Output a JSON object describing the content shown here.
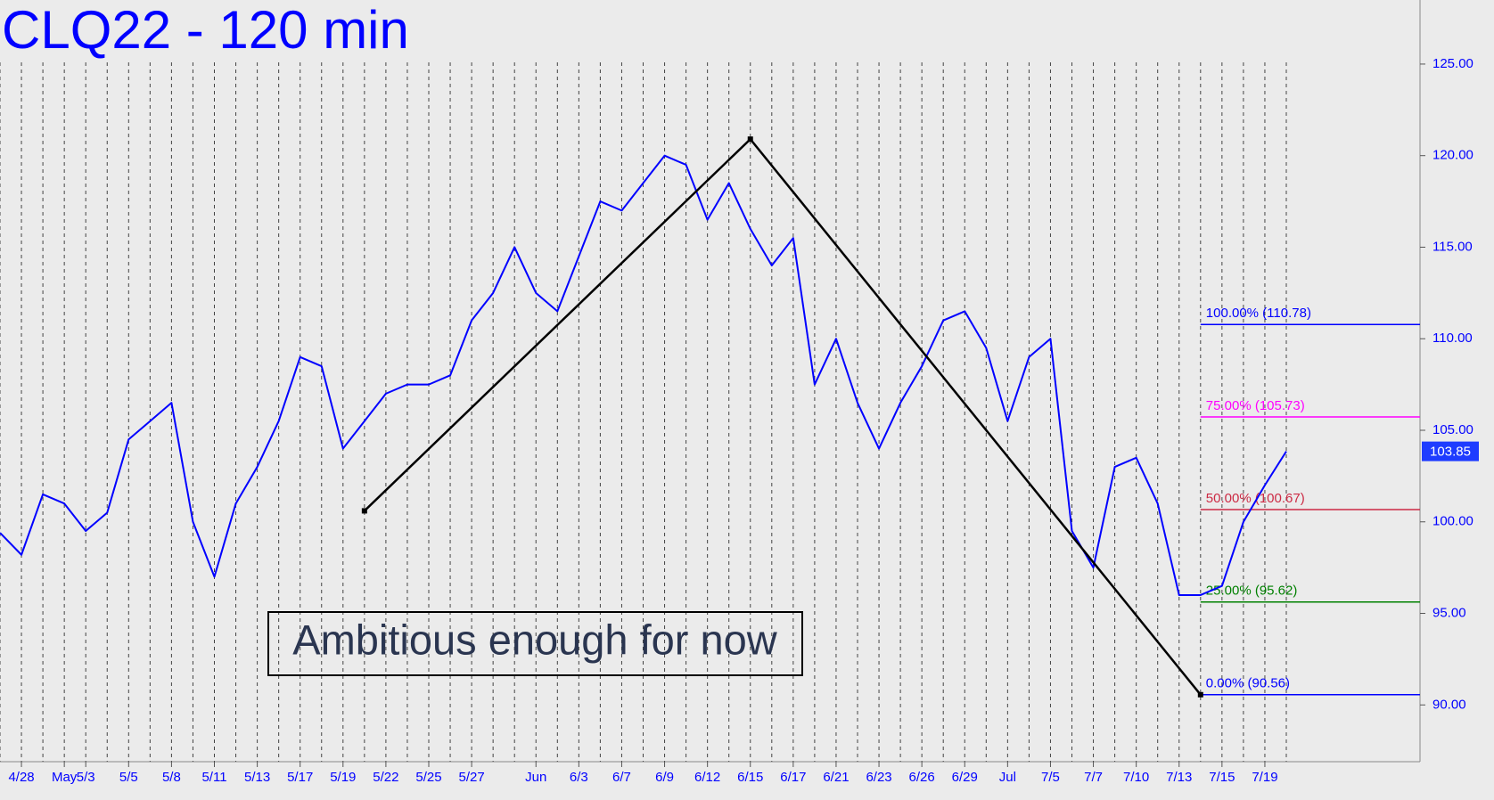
{
  "chart_data": {
    "type": "line",
    "title": "CLQ22 - 120 min",
    "categories": [
      null,
      "4/28",
      null,
      "May",
      "5/3",
      null,
      "5/5",
      null,
      "5/8",
      null,
      "5/11",
      null,
      "5/13",
      null,
      "5/17",
      null,
      "5/19",
      null,
      "5/22",
      null,
      "5/25",
      null,
      "5/27",
      null,
      null,
      "Jun",
      null,
      "6/3",
      null,
      "6/7",
      null,
      "6/9",
      null,
      "6/12",
      null,
      "6/15",
      null,
      "6/17",
      null,
      "6/21",
      null,
      "6/23",
      null,
      "6/26",
      null,
      "6/29",
      null,
      "Jul",
      null,
      "7/5",
      null,
      "7/7",
      null,
      "7/10",
      null,
      "7/13",
      null,
      "7/15",
      null,
      "7/19",
      null
    ],
    "series": [
      {
        "color": "#0000ff",
        "values": [
          99.4,
          98.2,
          101.5,
          101,
          99.5,
          100.5,
          104.5,
          105.5,
          106.5,
          100,
          97,
          101,
          103,
          105.5,
          109,
          108.5,
          104,
          105.5,
          107,
          107.5,
          107.5,
          108,
          111,
          112.5,
          115,
          112.5,
          111.5,
          114.5,
          117.5,
          117,
          118.5,
          120,
          119.5,
          116.5,
          118.5,
          116,
          114,
          115.5,
          107.5,
          110,
          106.5,
          104,
          106.5,
          108.5,
          111,
          111.5,
          109.5,
          105.5,
          109,
          110,
          99.5,
          97.5,
          103,
          103.5,
          101,
          96,
          96,
          96.5,
          100,
          102,
          103.85
        ]
      }
    ],
    "trendline": {
      "color": "#000000",
      "values": [
        null,
        null,
        null,
        null,
        null,
        null,
        null,
        null,
        null,
        null,
        null,
        null,
        null,
        null,
        null,
        null,
        null,
        100.6,
        null,
        null,
        null,
        null,
        null,
        null,
        null,
        null,
        null,
        null,
        null,
        null,
        null,
        null,
        null,
        null,
        null,
        120.9,
        null,
        null,
        null,
        null,
        null,
        null,
        null,
        null,
        null,
        null,
        null,
        null,
        null,
        null,
        null,
        null,
        null,
        null,
        null,
        null,
        90.56,
        null,
        null,
        null,
        null
      ]
    },
    "levels": [
      {
        "label": "100.00% (110.78)",
        "value": 110.78,
        "color": "#0000ff"
      },
      {
        "label": "75.00% (105.73)",
        "value": 105.73,
        "color": "#ff00ff"
      },
      {
        "label": "50.00% (100.67)",
        "value": 100.67,
        "color": "#cc2a44"
      },
      {
        "label": "25.00% (95.62)",
        "value": 95.62,
        "color": "#008000"
      },
      {
        "label": "0.00% (90.56)",
        "value": 90.56,
        "color": "#0000ff"
      }
    ],
    "last_price": 103.85,
    "annotation": "Ambitious enough for now",
    "ylim": [
      86.9,
      128.5
    ],
    "yticks": [
      {
        "value": 90,
        "label": "90.00"
      },
      {
        "value": 95,
        "label": "95.00"
      },
      {
        "value": 100,
        "label": "100.00"
      },
      {
        "value": 105,
        "label": "105.00"
      },
      {
        "value": 110,
        "label": "110.00"
      },
      {
        "value": 115,
        "label": "115.00"
      },
      {
        "value": 120,
        "label": "120.00"
      },
      {
        "value": 125,
        "label": "125.00"
      }
    ]
  }
}
